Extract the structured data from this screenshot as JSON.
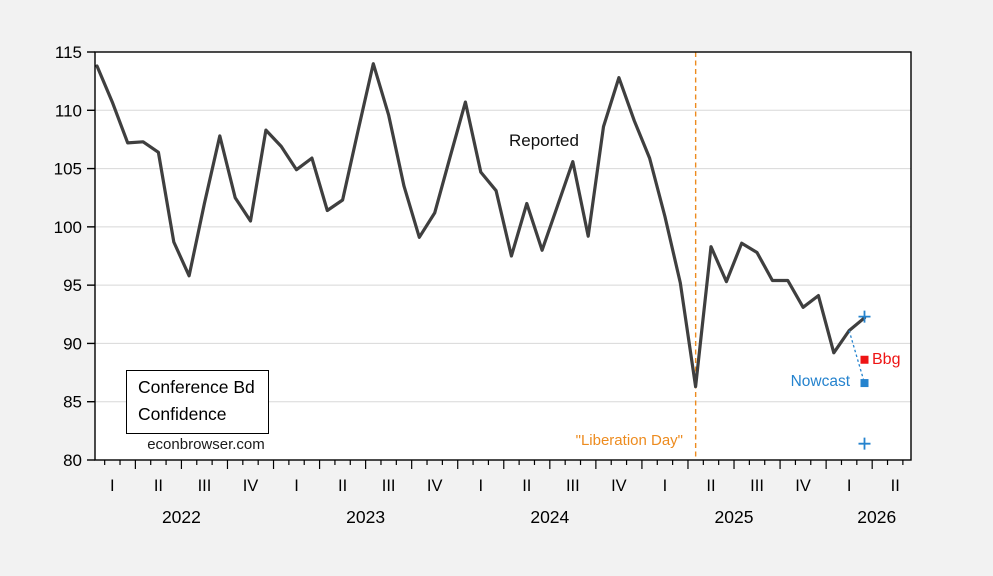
{
  "background": "#f2f2f2",
  "chart_data": {
    "type": "line",
    "title_box_line1": "Conference Bd",
    "title_box_line2": "Confidence",
    "watermark": "econbrowser.com",
    "grid": "horizontal-only",
    "ylim": [
      80,
      115
    ],
    "ytick_step": 5,
    "ytick_labels": [
      "80",
      "85",
      "90",
      "95",
      "100",
      "105",
      "110",
      "115"
    ],
    "quarter_labels": [
      "I",
      "II",
      "III",
      "IV",
      "I",
      "II",
      "III",
      "IV",
      "I",
      "II",
      "III",
      "IV",
      "I",
      "II",
      "III",
      "IV",
      "I",
      "II"
    ],
    "year_labels": [
      "2022",
      "2023",
      "2024",
      "2025",
      "2026"
    ],
    "series": [
      {
        "name": "Reported",
        "color": "#3f3f3f",
        "months": [
          "2022-01",
          "2022-02",
          "2022-03",
          "2022-04",
          "2022-05",
          "2022-06",
          "2022-07",
          "2022-08",
          "2022-09",
          "2022-10",
          "2022-11",
          "2022-12",
          "2023-01",
          "2023-02",
          "2023-03",
          "2023-04",
          "2023-05",
          "2023-06",
          "2023-07",
          "2023-08",
          "2023-09",
          "2023-10",
          "2023-11",
          "2023-12",
          "2024-01",
          "2024-02",
          "2024-03",
          "2024-04",
          "2024-05",
          "2024-06",
          "2024-07",
          "2024-08",
          "2024-09",
          "2024-10",
          "2024-11",
          "2024-12",
          "2025-01",
          "2025-02",
          "2025-03",
          "2025-04",
          "2025-05",
          "2025-06",
          "2025-07",
          "2025-08",
          "2025-09",
          "2025-10",
          "2025-11",
          "2025-12",
          "2026-01",
          "2026-02",
          "2026-03"
        ],
        "values": [
          113.8,
          110.7,
          107.2,
          107.3,
          106.4,
          98.7,
          95.8,
          102.0,
          107.8,
          102.5,
          100.5,
          108.3,
          106.9,
          104.9,
          105.9,
          101.4,
          102.3,
          108.2,
          114.0,
          109.6,
          103.5,
          99.1,
          101.2,
          106.0,
          110.7,
          104.7,
          103.1,
          97.5,
          102.0,
          98.0,
          101.8,
          105.6,
          99.2,
          108.6,
          112.8,
          109.1,
          105.9,
          100.9,
          95.2,
          86.3,
          98.3,
          95.3,
          98.6,
          97.8,
          95.4,
          95.4,
          93.1,
          94.1,
          89.2,
          91.1,
          92.2
        ]
      }
    ],
    "series_annotation": "Reported",
    "vline": {
      "label": "\"Liberation Day\"",
      "month": "2025-04",
      "month_index": 39,
      "color": "#ed8b1e",
      "style": "dashed"
    },
    "forecast_markers": {
      "month": "2026-03",
      "month_index": 50,
      "nowcast": {
        "label": "Nowcast",
        "value": 86.6,
        "color": "#2583ce",
        "marker": "filled-square"
      },
      "bbg": {
        "label": "Bbg",
        "value": 88.6,
        "color": "#ee1414",
        "marker": "filled-square"
      },
      "interval": {
        "high": 92.3,
        "low": 81.4,
        "marker": "plus",
        "color": "#2583ce"
      },
      "connector": {
        "from_month_index": 49,
        "style": "dotted",
        "color": "#2583ce"
      }
    }
  }
}
